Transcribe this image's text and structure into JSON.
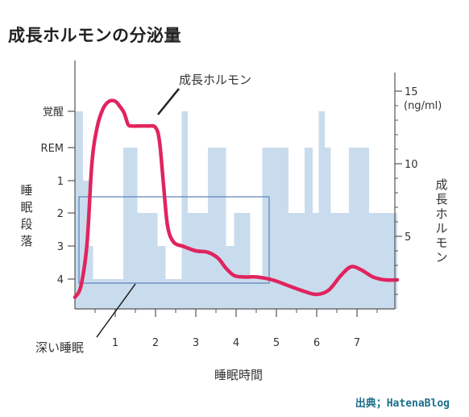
{
  "page_title": "成長ホルモンの分泌量",
  "source": "出典；HatenaBlog",
  "colors": {
    "growth_hormone_line": "#e0245e",
    "sleep_stage_bars": "#c9dcee",
    "highlight_box": "#5b7fb5",
    "axis": "#555555"
  },
  "chart_data": {
    "type": "line",
    "title": "成長ホルモンの分泌量",
    "xlabel": "睡眠時間",
    "ylabel_left": "睡眠段落",
    "ylabel_right": "成長ホルモン",
    "right_unit": "(ng/ml)",
    "x_ticks": [
      "1",
      "2",
      "3",
      "4",
      "5",
      "6",
      "7"
    ],
    "xlim": [
      0,
      8
    ],
    "left_ticks": [
      "覚醒",
      "REM",
      "1",
      "2",
      "3",
      "4"
    ],
    "right_ticks": [
      "15",
      "10",
      "5"
    ],
    "ylim_right": [
      0,
      15.5
    ],
    "grid": false,
    "series": [
      {
        "name": "成長ホルモン",
        "x": [
          0,
          0.15,
          0.3,
          0.42,
          0.55,
          0.7,
          0.85,
          1.0,
          1.1,
          1.22,
          1.32,
          1.42,
          1.6,
          1.8,
          2.0,
          2.1,
          2.2,
          2.3,
          2.45,
          2.7,
          3.0,
          3.3,
          3.55,
          3.75,
          3.95,
          4.2,
          4.5,
          4.9,
          5.3,
          5.7,
          6.0,
          6.3,
          6.6,
          6.85,
          7.1,
          7.4,
          7.7,
          8.0
        ],
        "y": [
          0.8,
          1.6,
          4.5,
          10.0,
          12.5,
          13.8,
          14.3,
          14.3,
          14.0,
          13.5,
          12.7,
          12.6,
          12.6,
          12.6,
          12.5,
          11.5,
          8.5,
          5.7,
          4.6,
          4.3,
          4.0,
          3.9,
          3.5,
          2.8,
          2.3,
          2.2,
          2.2,
          2.0,
          1.6,
          1.2,
          1.0,
          1.3,
          2.3,
          2.9,
          2.7,
          2.2,
          2.0,
          2.0
        ]
      }
    ],
    "sleep_stages": {
      "stage_order": [
        "覚醒",
        "REM",
        "1",
        "2",
        "3",
        "4"
      ],
      "segments": [
        {
          "x0": 0.0,
          "x1": 0.2,
          "stage": "覚醒"
        },
        {
          "x0": 0.2,
          "x1": 0.35,
          "stage": "1"
        },
        {
          "x0": 0.35,
          "x1": 0.45,
          "stage": "3"
        },
        {
          "x0": 0.45,
          "x1": 1.2,
          "stage": "4"
        },
        {
          "x0": 1.2,
          "x1": 1.55,
          "stage": "REM"
        },
        {
          "x0": 1.55,
          "x1": 2.05,
          "stage": "2"
        },
        {
          "x0": 2.05,
          "x1": 2.25,
          "stage": "3"
        },
        {
          "x0": 2.25,
          "x1": 2.65,
          "stage": "4"
        },
        {
          "x0": 2.65,
          "x1": 2.8,
          "stage": "覚醒"
        },
        {
          "x0": 2.8,
          "x1": 3.3,
          "stage": "2"
        },
        {
          "x0": 3.3,
          "x1": 3.75,
          "stage": "REM"
        },
        {
          "x0": 3.75,
          "x1": 3.95,
          "stage": "3"
        },
        {
          "x0": 3.95,
          "x1": 4.35,
          "stage": "2"
        },
        {
          "x0": 4.35,
          "x1": 4.65,
          "stage": "4"
        },
        {
          "x0": 4.65,
          "x1": 5.3,
          "stage": "REM"
        },
        {
          "x0": 5.3,
          "x1": 5.7,
          "stage": "2"
        },
        {
          "x0": 5.7,
          "x1": 5.9,
          "stage": "REM"
        },
        {
          "x0": 5.9,
          "x1": 6.05,
          "stage": "2"
        },
        {
          "x0": 6.05,
          "x1": 6.2,
          "stage": "覚醒"
        },
        {
          "x0": 6.2,
          "x1": 6.35,
          "stage": "REM"
        },
        {
          "x0": 6.35,
          "x1": 6.8,
          "stage": "2"
        },
        {
          "x0": 6.8,
          "x1": 7.3,
          "stage": "REM"
        },
        {
          "x0": 7.3,
          "x1": 8.0,
          "stage": "2"
        }
      ]
    },
    "highlight_region": {
      "x0": 0.1,
      "x1": 4.82,
      "stage_top": "2",
      "stage_bottom": "4"
    },
    "annotations": [
      {
        "text": "成長ホルモン",
        "points_to": "series_peak",
        "at_x": 2.0
      },
      {
        "text": "深い睡眠",
        "points_to": "highlight_region"
      }
    ]
  }
}
